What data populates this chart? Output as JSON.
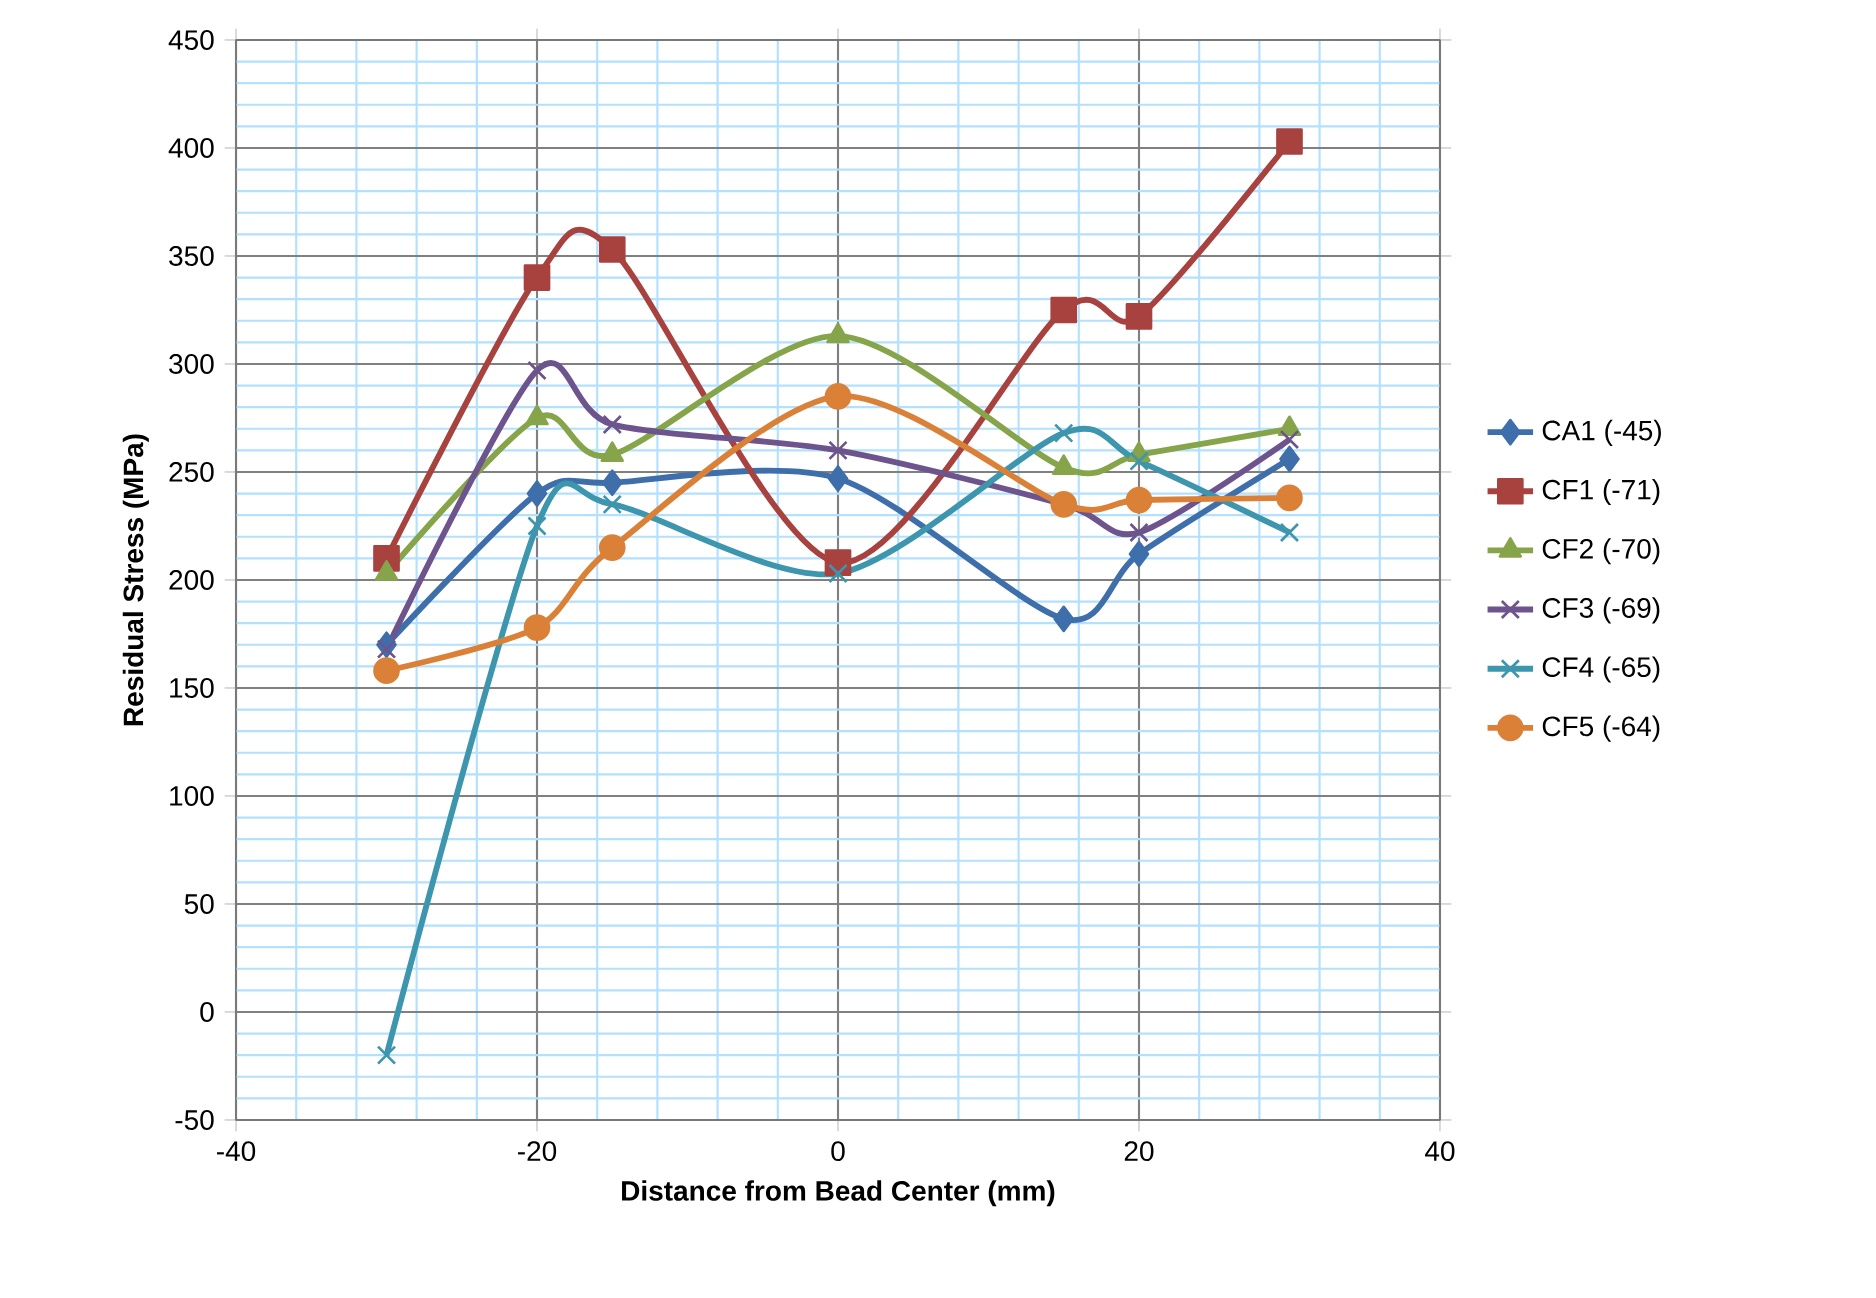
{
  "chart_data": {
    "type": "line",
    "xlabel": "Distance from Bead Center (mm)",
    "ylabel": "Residual Stress  (MPa)",
    "x": [
      -30,
      -20,
      -15,
      0,
      15,
      20,
      30
    ],
    "series": [
      {
        "name": "CA1 (-45)",
        "color": "#3e6fab",
        "marker": "diamond",
        "values": [
          170,
          240,
          245,
          247,
          182,
          212,
          256
        ]
      },
      {
        "name": "CF1 (-71)",
        "color": "#a8423f",
        "marker": "square",
        "values": [
          210,
          340,
          353,
          208,
          325,
          322,
          403
        ]
      },
      {
        "name": "CF2 (-70)",
        "color": "#86a44a",
        "marker": "triangle",
        "values": [
          203,
          275,
          258,
          313,
          252,
          258,
          270
        ]
      },
      {
        "name": "CF3 (-69)",
        "color": "#6e548d",
        "marker": "cross",
        "values": [
          168,
          297,
          272,
          260,
          235,
          222,
          265
        ]
      },
      {
        "name": "CF4 (-65)",
        "color": "#3d96ae",
        "marker": "cross",
        "values": [
          -20,
          225,
          235,
          203,
          268,
          255,
          222
        ]
      },
      {
        "name": "CF5 (-64)",
        "color": "#da8137",
        "marker": "circle",
        "values": [
          158,
          178,
          215,
          285,
          235,
          237,
          238
        ]
      }
    ],
    "xlim": [
      -40,
      40
    ],
    "xticks": [
      -40,
      {
        "value": -36,
        "label": null
      },
      {
        "value": -32,
        "label": null
      },
      {
        "value": -28,
        "label": null
      },
      {
        "value": -24,
        "label": null
      },
      -20,
      {
        "value": -16,
        "label": null
      },
      {
        "value": -12,
        "label": null
      },
      {
        "value": -8,
        "label": null
      },
      {
        "value": -4,
        "label": null
      },
      0,
      {
        "value": 4,
        "label": null
      },
      {
        "value": 8,
        "label": null
      },
      {
        "value": 12,
        "label": null
      },
      {
        "value": 16,
        "label": null
      },
      20,
      {
        "value": 24,
        "label": null
      },
      {
        "value": 28,
        "label": null
      },
      {
        "value": 32,
        "label": null
      },
      {
        "value": 36,
        "label": null
      },
      40
    ],
    "ylim": [
      -50,
      450
    ],
    "yticks": [
      -50,
      {
        "value": -40,
        "label": null
      },
      {
        "value": -30,
        "label": null
      },
      {
        "value": -20,
        "label": null
      },
      {
        "value": -10,
        "label": null
      },
      0,
      {
        "value": 10,
        "label": null
      },
      {
        "value": 20,
        "label": null
      },
      {
        "value": 30,
        "label": null
      },
      {
        "value": 40,
        "label": null
      },
      50,
      {
        "value": 60,
        "label": null
      },
      {
        "value": 70,
        "label": null
      },
      {
        "value": 80,
        "label": null
      },
      {
        "value": 90,
        "label": null
      },
      100,
      {
        "value": 110,
        "label": null
      },
      {
        "value": 120,
        "label": null
      },
      {
        "value": 130,
        "label": null
      },
      {
        "value": 140,
        "label": null
      },
      150,
      {
        "value": 160,
        "label": null
      },
      {
        "value": 170,
        "label": null
      },
      {
        "value": 180,
        "label": null
      },
      {
        "value": 190,
        "label": null
      },
      200,
      {
        "value": 210,
        "label": null
      },
      {
        "value": 220,
        "label": null
      },
      {
        "value": 230,
        "label": null
      },
      {
        "value": 240,
        "label": null
      },
      250,
      {
        "value": 260,
        "label": null
      },
      {
        "value": 270,
        "label": null
      },
      {
        "value": 280,
        "label": null
      },
      {
        "value": 290,
        "label": null
      },
      300,
      {
        "value": 310,
        "label": null
      },
      {
        "value": 320,
        "label": null
      },
      {
        "value": 330,
        "label": null
      },
      {
        "value": 340,
        "label": null
      },
      350,
      {
        "value": 360,
        "label": null
      },
      {
        "value": 370,
        "label": null
      },
      {
        "value": 380,
        "label": null
      },
      {
        "value": 390,
        "label": null
      },
      400,
      {
        "value": 410,
        "label": null
      },
      {
        "value": 420,
        "label": null
      },
      {
        "value": 430,
        "label": null
      },
      {
        "value": 440,
        "label": null
      },
      450
    ],
    "grid": true,
    "legend": "right"
  }
}
